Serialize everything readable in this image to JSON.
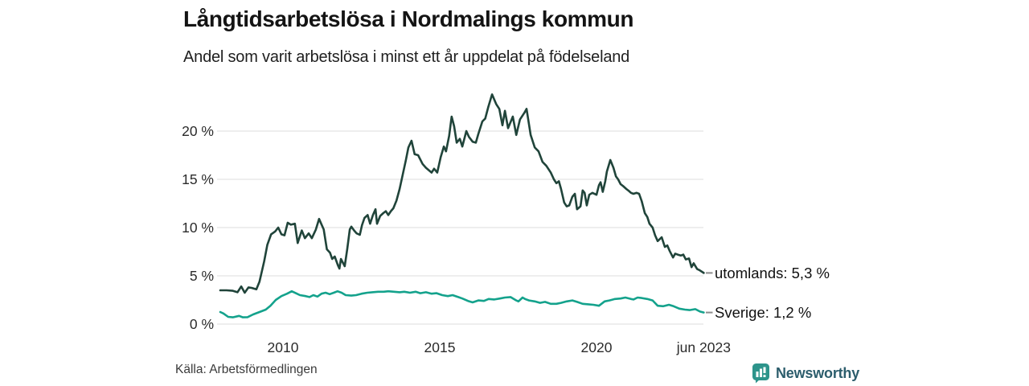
{
  "header": {
    "title": "Långtidsarbetslösa i Nordmalings kommun",
    "subtitle": "Andel som varit arbetslösa i minst ett år uppdelat på födelseland"
  },
  "footer": {
    "source": "Källa: Arbetsförmedlingen",
    "brand": "Newsworthy",
    "brand_icon": "newsworthy-bars-icon"
  },
  "colors": {
    "grid": "#dcdcdc",
    "axis_text": "#2b2b2b",
    "end_label_text": "#111111",
    "end_tick": "#8c8c8c",
    "brand_text": "#2c5d6c",
    "brand_icon_bg": "#2d948b"
  },
  "chart_data": {
    "type": "line",
    "title": "Långtidsarbetslösa i Nordmalings kommun",
    "subtitle": "Andel som varit arbetslösa i minst ett år uppdelat på födelseland",
    "grid": "horizontal",
    "legend_position": "end-of-line",
    "x_axis": {
      "range": [
        2008.0,
        2023.45
      ],
      "ticks": [
        {
          "value": 2010,
          "label": "2010"
        },
        {
          "value": 2015,
          "label": "2015"
        },
        {
          "value": 2020,
          "label": "2020"
        },
        {
          "value": 2023.42,
          "label": "jun 2023"
        }
      ]
    },
    "y_axis": {
      "range": [
        0,
        24.3
      ],
      "unit": "%",
      "ticks": [
        {
          "value": 0,
          "label": "0 %"
        },
        {
          "value": 5,
          "label": "5 %"
        },
        {
          "value": 10,
          "label": "10 %"
        },
        {
          "value": 15,
          "label": "15 %"
        },
        {
          "value": 20,
          "label": "20 %"
        }
      ]
    },
    "series": [
      {
        "name": "utomlands",
        "end_label": "utomlands: 5,3 %",
        "end_value": 5.3,
        "color": "#20443a",
        "points": [
          [
            2008.0,
            3.5
          ],
          [
            2008.2,
            3.5
          ],
          [
            2008.4,
            3.45
          ],
          [
            2008.55,
            3.3
          ],
          [
            2008.67,
            3.9
          ],
          [
            2008.78,
            3.25
          ],
          [
            2008.9,
            3.8
          ],
          [
            2009.0,
            3.75
          ],
          [
            2009.15,
            3.6
          ],
          [
            2009.25,
            4.4
          ],
          [
            2009.4,
            6.5
          ],
          [
            2009.5,
            8.2
          ],
          [
            2009.62,
            9.3
          ],
          [
            2009.75,
            9.6
          ],
          [
            2009.85,
            10.0
          ],
          [
            2009.95,
            9.3
          ],
          [
            2010.05,
            9.2
          ],
          [
            2010.15,
            10.5
          ],
          [
            2010.25,
            10.3
          ],
          [
            2010.38,
            10.4
          ],
          [
            2010.47,
            8.4
          ],
          [
            2010.6,
            9.7
          ],
          [
            2010.7,
            8.9
          ],
          [
            2010.82,
            9.4
          ],
          [
            2010.92,
            8.9
          ],
          [
            2011.05,
            9.8
          ],
          [
            2011.15,
            10.9
          ],
          [
            2011.3,
            9.8
          ],
          [
            2011.4,
            7.75
          ],
          [
            2011.5,
            7.4
          ],
          [
            2011.57,
            6.75
          ],
          [
            2011.65,
            7.0
          ],
          [
            2011.75,
            6.1
          ],
          [
            2011.8,
            5.75
          ],
          [
            2011.85,
            6.75
          ],
          [
            2011.92,
            6.3
          ],
          [
            2011.97,
            6.0
          ],
          [
            2012.05,
            7.75
          ],
          [
            2012.13,
            9.8
          ],
          [
            2012.18,
            10.1
          ],
          [
            2012.27,
            9.7
          ],
          [
            2012.35,
            9.4
          ],
          [
            2012.45,
            9.25
          ],
          [
            2012.52,
            10.25
          ],
          [
            2012.6,
            11.0
          ],
          [
            2012.7,
            11.3
          ],
          [
            2012.78,
            10.4
          ],
          [
            2012.87,
            11.3
          ],
          [
            2012.95,
            11.9
          ],
          [
            2013.0,
            10.4
          ],
          [
            2013.1,
            11.2
          ],
          [
            2013.2,
            11.5
          ],
          [
            2013.28,
            11.7
          ],
          [
            2013.36,
            11.3
          ],
          [
            2013.44,
            11.7
          ],
          [
            2013.52,
            12.0
          ],
          [
            2013.62,
            12.8
          ],
          [
            2013.72,
            14.0
          ],
          [
            2013.82,
            15.5
          ],
          [
            2013.92,
            17.0
          ],
          [
            2014.0,
            18.3
          ],
          [
            2014.1,
            19.0
          ],
          [
            2014.2,
            17.6
          ],
          [
            2014.31,
            17.5
          ],
          [
            2014.45,
            16.6
          ],
          [
            2014.56,
            16.2
          ],
          [
            2014.67,
            15.9
          ],
          [
            2014.74,
            15.7
          ],
          [
            2014.82,
            16.1
          ],
          [
            2014.92,
            15.7
          ],
          [
            2015.03,
            17.3
          ],
          [
            2015.13,
            18.4
          ],
          [
            2015.2,
            17.9
          ],
          [
            2015.3,
            19.5
          ],
          [
            2015.38,
            21.5
          ],
          [
            2015.46,
            20.5
          ],
          [
            2015.54,
            18.8
          ],
          [
            2015.64,
            19.2
          ],
          [
            2015.72,
            18.4
          ],
          [
            2015.85,
            20.0
          ],
          [
            2015.93,
            19.4
          ],
          [
            2016.05,
            18.9
          ],
          [
            2016.15,
            18.8
          ],
          [
            2016.23,
            19.7
          ],
          [
            2016.36,
            21.0
          ],
          [
            2016.45,
            21.3
          ],
          [
            2016.55,
            22.5
          ],
          [
            2016.67,
            23.8
          ],
          [
            2016.8,
            22.8
          ],
          [
            2016.9,
            22.3
          ],
          [
            2017.0,
            20.6
          ],
          [
            2017.08,
            22.1
          ],
          [
            2017.18,
            20.3
          ],
          [
            2017.33,
            21.5
          ],
          [
            2017.44,
            19.6
          ],
          [
            2017.56,
            21.2
          ],
          [
            2017.7,
            21.9
          ],
          [
            2017.77,
            22.3
          ],
          [
            2017.9,
            19.6
          ],
          [
            2018.03,
            18.3
          ],
          [
            2018.15,
            17.9
          ],
          [
            2018.28,
            16.8
          ],
          [
            2018.4,
            16.4
          ],
          [
            2018.54,
            15.7
          ],
          [
            2018.64,
            15.0
          ],
          [
            2018.72,
            14.6
          ],
          [
            2018.8,
            14.8
          ],
          [
            2018.87,
            14.0
          ],
          [
            2018.97,
            12.6
          ],
          [
            2019.05,
            12.2
          ],
          [
            2019.13,
            12.3
          ],
          [
            2019.23,
            13.2
          ],
          [
            2019.31,
            13.5
          ],
          [
            2019.38,
            11.9
          ],
          [
            2019.49,
            12.2
          ],
          [
            2019.56,
            13.85
          ],
          [
            2019.62,
            13.6
          ],
          [
            2019.69,
            12.3
          ],
          [
            2019.77,
            13.4
          ],
          [
            2019.87,
            13.6
          ],
          [
            2020.0,
            13.4
          ],
          [
            2020.08,
            14.4
          ],
          [
            2020.13,
            14.7
          ],
          [
            2020.2,
            13.7
          ],
          [
            2020.28,
            14.8
          ],
          [
            2020.33,
            15.8
          ],
          [
            2020.44,
            17.0
          ],
          [
            2020.54,
            16.2
          ],
          [
            2020.62,
            15.3
          ],
          [
            2020.69,
            15.0
          ],
          [
            2020.77,
            14.5
          ],
          [
            2020.85,
            14.3
          ],
          [
            2020.95,
            14.0
          ],
          [
            2021.03,
            13.8
          ],
          [
            2021.1,
            13.6
          ],
          [
            2021.18,
            13.5
          ],
          [
            2021.28,
            13.6
          ],
          [
            2021.36,
            13.5
          ],
          [
            2021.44,
            12.75
          ],
          [
            2021.54,
            11.5
          ],
          [
            2021.62,
            11.1
          ],
          [
            2021.69,
            10.4
          ],
          [
            2021.79,
            10.0
          ],
          [
            2021.87,
            9.2
          ],
          [
            2021.95,
            8.6
          ],
          [
            2022.05,
            8.9
          ],
          [
            2022.08,
            9.0
          ],
          [
            2022.18,
            8.0
          ],
          [
            2022.26,
            8.15
          ],
          [
            2022.33,
            7.6
          ],
          [
            2022.44,
            6.9
          ],
          [
            2022.51,
            7.3
          ],
          [
            2022.59,
            7.2
          ],
          [
            2022.69,
            7.1
          ],
          [
            2022.77,
            7.2
          ],
          [
            2022.85,
            6.7
          ],
          [
            2022.95,
            6.8
          ],
          [
            2023.03,
            5.9
          ],
          [
            2023.1,
            6.3
          ],
          [
            2023.21,
            5.7
          ],
          [
            2023.28,
            5.6
          ],
          [
            2023.42,
            5.3
          ]
        ]
      },
      {
        "name": "Sverige",
        "end_label": "Sverige: 1,2 %",
        "end_value": 1.2,
        "color": "#14a28c",
        "points": [
          [
            2008.0,
            1.25
          ],
          [
            2008.1,
            1.1
          ],
          [
            2008.25,
            0.75
          ],
          [
            2008.4,
            0.7
          ],
          [
            2008.6,
            0.85
          ],
          [
            2008.72,
            0.7
          ],
          [
            2008.87,
            0.72
          ],
          [
            2009.05,
            1.0
          ],
          [
            2009.25,
            1.25
          ],
          [
            2009.45,
            1.5
          ],
          [
            2009.6,
            1.9
          ],
          [
            2009.77,
            2.5
          ],
          [
            2009.95,
            2.9
          ],
          [
            2010.13,
            3.15
          ],
          [
            2010.28,
            3.4
          ],
          [
            2010.41,
            3.2
          ],
          [
            2010.54,
            3.0
          ],
          [
            2010.72,
            2.9
          ],
          [
            2010.85,
            2.8
          ],
          [
            2010.97,
            3.0
          ],
          [
            2011.1,
            2.85
          ],
          [
            2011.23,
            3.15
          ],
          [
            2011.36,
            3.25
          ],
          [
            2011.49,
            3.1
          ],
          [
            2011.62,
            3.25
          ],
          [
            2011.74,
            3.4
          ],
          [
            2011.87,
            3.25
          ],
          [
            2012.0,
            3.0
          ],
          [
            2012.18,
            2.95
          ],
          [
            2012.33,
            3.0
          ],
          [
            2012.51,
            3.15
          ],
          [
            2012.69,
            3.25
          ],
          [
            2012.85,
            3.3
          ],
          [
            2013.03,
            3.35
          ],
          [
            2013.21,
            3.35
          ],
          [
            2013.36,
            3.4
          ],
          [
            2013.54,
            3.35
          ],
          [
            2013.72,
            3.3
          ],
          [
            2013.87,
            3.35
          ],
          [
            2014.05,
            3.25
          ],
          [
            2014.23,
            3.35
          ],
          [
            2014.38,
            3.2
          ],
          [
            2014.56,
            3.3
          ],
          [
            2014.74,
            3.15
          ],
          [
            2014.9,
            3.2
          ],
          [
            2015.08,
            3.0
          ],
          [
            2015.26,
            2.9
          ],
          [
            2015.41,
            3.0
          ],
          [
            2015.59,
            2.8
          ],
          [
            2015.72,
            2.65
          ],
          [
            2015.9,
            2.4
          ],
          [
            2016.05,
            2.25
          ],
          [
            2016.23,
            2.45
          ],
          [
            2016.41,
            2.4
          ],
          [
            2016.56,
            2.6
          ],
          [
            2016.74,
            2.55
          ],
          [
            2016.92,
            2.65
          ],
          [
            2017.08,
            2.75
          ],
          [
            2017.26,
            2.8
          ],
          [
            2017.44,
            2.45
          ],
          [
            2017.51,
            2.35
          ],
          [
            2017.64,
            2.75
          ],
          [
            2017.72,
            2.6
          ],
          [
            2017.85,
            2.45
          ],
          [
            2018.03,
            2.35
          ],
          [
            2018.2,
            2.2
          ],
          [
            2018.36,
            2.3
          ],
          [
            2018.54,
            2.1
          ],
          [
            2018.72,
            2.1
          ],
          [
            2018.87,
            2.2
          ],
          [
            2019.05,
            2.35
          ],
          [
            2019.23,
            2.45
          ],
          [
            2019.38,
            2.3
          ],
          [
            2019.56,
            2.1
          ],
          [
            2019.74,
            2.05
          ],
          [
            2019.9,
            2.0
          ],
          [
            2020.08,
            1.9
          ],
          [
            2020.26,
            2.35
          ],
          [
            2020.41,
            2.45
          ],
          [
            2020.59,
            2.6
          ],
          [
            2020.77,
            2.65
          ],
          [
            2020.92,
            2.75
          ],
          [
            2021.1,
            2.6
          ],
          [
            2021.18,
            2.55
          ],
          [
            2021.31,
            2.75
          ],
          [
            2021.44,
            2.7
          ],
          [
            2021.62,
            2.6
          ],
          [
            2021.79,
            2.45
          ],
          [
            2021.95,
            1.9
          ],
          [
            2022.13,
            1.85
          ],
          [
            2022.31,
            2.0
          ],
          [
            2022.46,
            1.85
          ],
          [
            2022.64,
            1.6
          ],
          [
            2022.82,
            1.5
          ],
          [
            2022.97,
            1.45
          ],
          [
            2023.15,
            1.55
          ],
          [
            2023.3,
            1.3
          ],
          [
            2023.42,
            1.2
          ]
        ]
      }
    ]
  }
}
